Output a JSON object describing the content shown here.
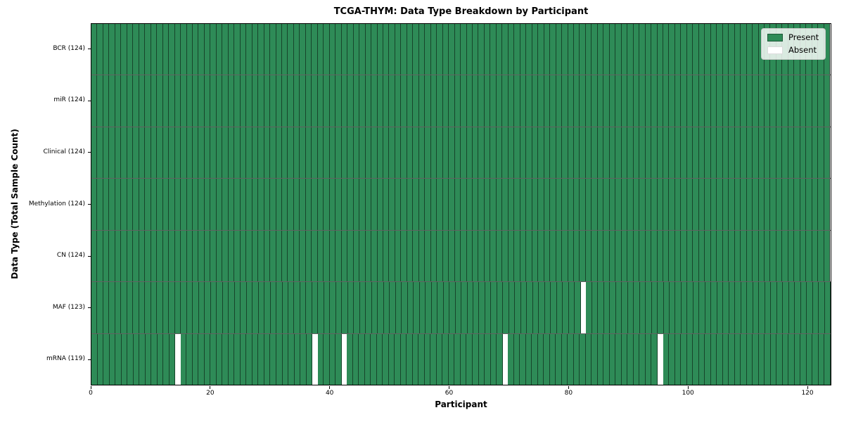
{
  "chart_data": {
    "type": "heatmap",
    "title": "TCGA-THYM: Data Type Breakdown by Participant",
    "xlabel": "Participant",
    "ylabel": "Data Type (Total Sample Count)",
    "x_ticks": [
      0,
      20,
      40,
      60,
      80,
      100,
      120
    ],
    "xlim": [
      0,
      124
    ],
    "n_participants": 124,
    "grid": false,
    "legend_position": "upper right",
    "legend": [
      {
        "label": "Present",
        "color": "#2e8b57"
      },
      {
        "label": "Absent",
        "color": "#ffffff"
      }
    ],
    "colors": {
      "present": "#2e8b57",
      "absent": "#ffffff",
      "cell_edge": "#1c4a30",
      "axis": "#000000"
    },
    "rows": [
      {
        "label": "BCR (124)",
        "present_count": 124,
        "absent_participants": []
      },
      {
        "label": "miR (124)",
        "present_count": 124,
        "absent_participants": []
      },
      {
        "label": "Clinical (124)",
        "present_count": 124,
        "absent_participants": []
      },
      {
        "label": "Methylation (124)",
        "present_count": 124,
        "absent_participants": []
      },
      {
        "label": "CN (124)",
        "present_count": 124,
        "absent_participants": []
      },
      {
        "label": "MAF (123)",
        "present_count": 123,
        "absent_participants": [
          82
        ]
      },
      {
        "label": "mRNA (119)",
        "present_count": 119,
        "absent_participants": [
          14,
          37,
          42,
          69,
          95
        ]
      }
    ]
  }
}
